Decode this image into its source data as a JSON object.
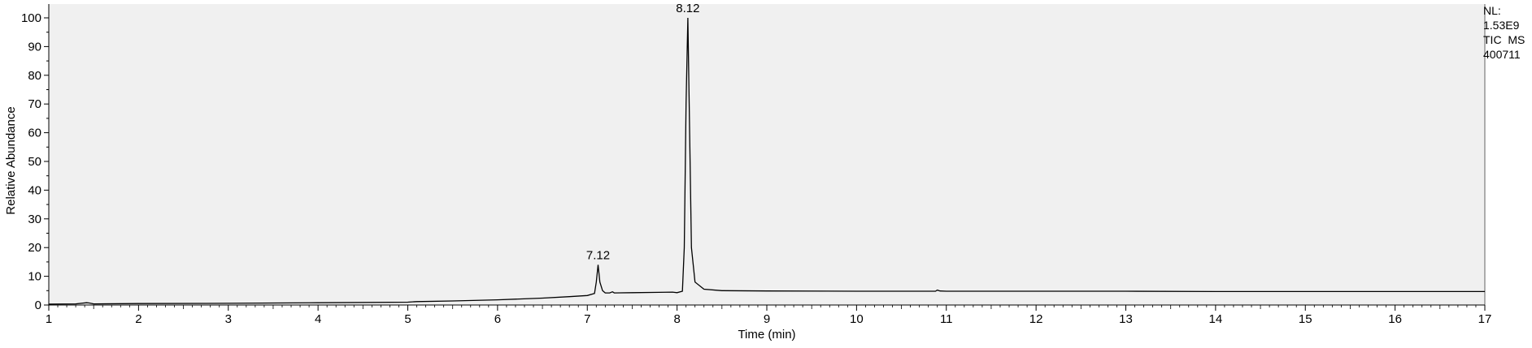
{
  "chart_data": {
    "type": "line",
    "xlabel": "Time (min)",
    "ylabel": "Relative Abundance",
    "xlim": [
      1,
      17
    ],
    "ylim": [
      0,
      100
    ],
    "x_ticks": [
      1,
      2,
      3,
      4,
      5,
      6,
      7,
      8,
      9,
      10,
      11,
      12,
      13,
      14,
      15,
      16,
      17
    ],
    "y_ticks": [
      0,
      10,
      20,
      30,
      40,
      50,
      60,
      70,
      80,
      90,
      100
    ],
    "grid": false,
    "background": "#f0f0f0",
    "line_color": "#000000",
    "annotations": [
      {
        "x": 7.12,
        "y": 14,
        "label": "7.12"
      },
      {
        "x": 8.12,
        "y": 100,
        "label": "8.12"
      }
    ],
    "series": [
      {
        "x": [
          1.0,
          1.3,
          1.42,
          1.45,
          1.5,
          2.0,
          3.0,
          4.0,
          5.0,
          5.1,
          5.5,
          6.0,
          6.5,
          6.8,
          7.0,
          7.08,
          7.1,
          7.12,
          7.14,
          7.17,
          7.2,
          7.25,
          7.28,
          7.3,
          7.5,
          7.8,
          7.95,
          8.0,
          8.06,
          8.08,
          8.1,
          8.12,
          8.14,
          8.16,
          8.2,
          8.3,
          8.5,
          9.0,
          10.0,
          10.88,
          10.9,
          10.93,
          11.0,
          12.0,
          13.0,
          14.0,
          15.0,
          16.0,
          17.0
        ],
        "y": [
          0.3,
          0.4,
          0.8,
          0.7,
          0.4,
          0.5,
          0.6,
          0.8,
          1.0,
          1.2,
          1.4,
          1.8,
          2.4,
          2.9,
          3.3,
          4.0,
          8.0,
          14.0,
          8.0,
          5.0,
          4.2,
          4.2,
          4.6,
          4.2,
          4.3,
          4.4,
          4.5,
          4.3,
          4.8,
          20.0,
          70.0,
          100.0,
          60.0,
          20.0,
          8.0,
          5.5,
          5.0,
          4.9,
          4.8,
          4.8,
          5.2,
          4.9,
          4.8,
          4.8,
          4.8,
          4.7,
          4.7,
          4.7,
          4.7
        ]
      }
    ]
  },
  "info": {
    "line1": "NL:",
    "line2": "1.53E9",
    "line3": "TIC  MS",
    "line4": "400711"
  }
}
